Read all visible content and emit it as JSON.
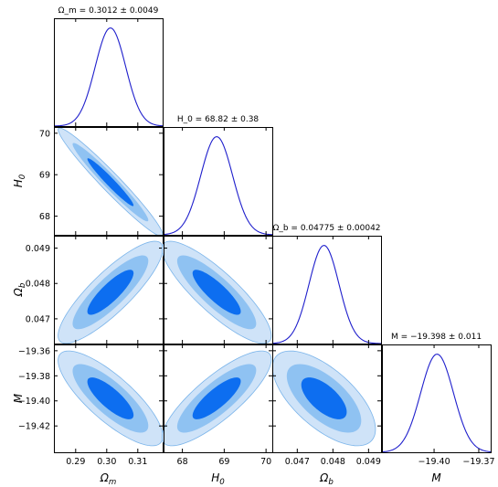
{
  "chart_data": {
    "type": "scatter",
    "params": [
      {
        "label": "Ω_m",
        "sub": "m",
        "sym": "Ω",
        "mean": 0.3012,
        "sigma": 0.0049,
        "title": "Ω_m = 0.3012 ± 0.0049",
        "range": [
          0.283,
          0.318
        ],
        "ticks": [
          0.29,
          0.3,
          0.31
        ],
        "tick_labels": [
          "0.29",
          "0.30",
          "0.31"
        ]
      },
      {
        "label": "H_0",
        "sub": "0",
        "sym": "H",
        "mean": 68.82,
        "sigma": 0.38,
        "title": "H_0 = 68.82 ± 0.38",
        "range": [
          67.55,
          70.15
        ],
        "ticks": [
          68,
          69,
          70
        ],
        "tick_labels": [
          "68",
          "69",
          "70"
        ]
      },
      {
        "label": "Ω_b",
        "sub": "b",
        "sym": "Ω",
        "mean": 0.04775,
        "sigma": 0.00042,
        "title": "Ω_b = 0.04775 ± 0.00042",
        "range": [
          0.0463,
          0.04935
        ],
        "ticks": [
          0.047,
          0.048,
          0.049
        ],
        "tick_labels": [
          "0.047",
          "0.048",
          "0.049"
        ]
      },
      {
        "label": "M",
        "sub": "",
        "sym": "M",
        "mean": -19.398,
        "sigma": 0.011,
        "title": "M = −19.398 ± 0.011",
        "range": [
          -19.441,
          -19.355
        ],
        "ticks": [
          -19.42,
          -19.4,
          -19.38,
          -19.36
        ],
        "tick_labels": [
          "−19.42",
          "−19.40",
          "−19.38",
          "−19.36"
        ],
        "x_ticks": [
          -19.4,
          -19.37
        ],
        "x_tick_labels": [
          "−19.40",
          "−19.37"
        ],
        "x_range": [
          -19.435,
          -19.362
        ]
      }
    ],
    "correlations": [
      {
        "pair": [
          "H_0",
          "Ω_m"
        ],
        "rho": -0.97
      },
      {
        "pair": [
          "Ω_b",
          "Ω_m"
        ],
        "rho": 0.85
      },
      {
        "pair": [
          "Ω_b",
          "H_0"
        ],
        "rho": -0.85
      },
      {
        "pair": [
          "M",
          "Ω_m"
        ],
        "rho": -0.8
      },
      {
        "pair": [
          "M",
          "H_0"
        ],
        "rho": 0.82
      },
      {
        "pair": [
          "M",
          "Ω_b"
        ],
        "rho": -0.65
      }
    ],
    "contour_levels_sigma": [
      1,
      2,
      3
    ],
    "colors": {
      "line": "#1f1fcc",
      "fill_1sigma": "#0d6ef0",
      "fill_2sigma": "#8fc2f2",
      "fill_3sigma": "#cfe3f8",
      "edge": "#7ab4ea"
    }
  }
}
